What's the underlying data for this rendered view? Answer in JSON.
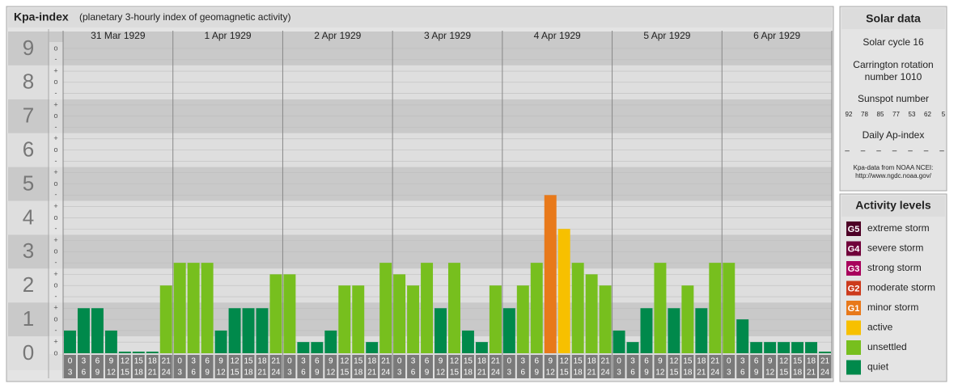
{
  "chart_data": {
    "type": "bar",
    "title": "Kpa-index",
    "subtitle": "(planetary 3-hourly index of geomagnetic activity)",
    "days": [
      "31 Mar 1929",
      "1 Apr 1929",
      "2 Apr 1929",
      "3 Apr 1929",
      "4 Apr 1929",
      "5 Apr 1929",
      "6 Apr 1929"
    ],
    "hours": [
      {
        "from": 0,
        "to": 3
      },
      {
        "from": 3,
        "to": 6
      },
      {
        "from": 6,
        "to": 9
      },
      {
        "from": 9,
        "to": 12
      },
      {
        "from": 12,
        "to": 15
      },
      {
        "from": 15,
        "to": 18
      },
      {
        "from": 18,
        "to": 21
      },
      {
        "from": 21,
        "to": 24
      }
    ],
    "values": [
      0.67,
      1.33,
      1.33,
      0.67,
      0,
      0,
      0,
      2,
      2.67,
      2.67,
      2.67,
      0.67,
      1.33,
      1.33,
      1.33,
      2.33,
      2.33,
      0.33,
      0.33,
      0.67,
      2,
      2,
      0.33,
      2.67,
      2.33,
      2,
      2.67,
      1.33,
      2.67,
      0.67,
      0.33,
      2,
      1.33,
      2,
      2.67,
      4.67,
      3.67,
      2.67,
      2.33,
      2,
      0.67,
      0.33,
      1.33,
      2.67,
      1.33,
      2,
      1.33,
      2.67,
      2.67,
      1,
      0.33,
      0.33,
      0.33,
      0.33,
      0.33,
      0
    ],
    "colors": [
      "#00894b",
      "#00894b",
      "#00894b",
      "#00894b",
      "#00894b",
      "#00894b",
      "#00894b",
      "#77bf1e",
      "#77bf1e",
      "#77bf1e",
      "#77bf1e",
      "#00894b",
      "#00894b",
      "#00894b",
      "#00894b",
      "#77bf1e",
      "#77bf1e",
      "#00894b",
      "#00894b",
      "#00894b",
      "#77bf1e",
      "#77bf1e",
      "#00894b",
      "#77bf1e",
      "#77bf1e",
      "#77bf1e",
      "#77bf1e",
      "#00894b",
      "#77bf1e",
      "#00894b",
      "#00894b",
      "#77bf1e",
      "#00894b",
      "#77bf1e",
      "#77bf1e",
      "#e8791a",
      "#f7c000",
      "#77bf1e",
      "#77bf1e",
      "#77bf1e",
      "#00894b",
      "#00894b",
      "#00894b",
      "#77bf1e",
      "#00894b",
      "#77bf1e",
      "#00894b",
      "#77bf1e",
      "#77bf1e",
      "#00894b",
      "#00894b",
      "#00894b",
      "#00894b",
      "#00894b",
      "#00894b",
      "#00894b"
    ],
    "ylim": [
      0,
      9.5
    ],
    "yticks": [
      0,
      1,
      2,
      3,
      4,
      5,
      6,
      7,
      8,
      9
    ],
    "minor_ticks": [
      {
        "value": 0,
        "label": "o"
      },
      {
        "value": 0.33,
        "label": "+"
      },
      {
        "value": 0.67,
        "label": "-"
      },
      {
        "value": 1,
        "label": "o"
      },
      {
        "value": 1.33,
        "label": "+"
      },
      {
        "value": 1.67,
        "label": "-"
      },
      {
        "value": 2,
        "label": "o"
      },
      {
        "value": 2.33,
        "label": "+"
      },
      {
        "value": 2.67,
        "label": "-"
      },
      {
        "value": 3,
        "label": "o"
      },
      {
        "value": 3.33,
        "label": "+"
      },
      {
        "value": 3.67,
        "label": "-"
      },
      {
        "value": 4,
        "label": "o"
      },
      {
        "value": 4.33,
        "label": "+"
      },
      {
        "value": 4.67,
        "label": "-"
      },
      {
        "value": 5,
        "label": "o"
      },
      {
        "value": 5.33,
        "label": "+"
      },
      {
        "value": 5.67,
        "label": "-"
      },
      {
        "value": 6,
        "label": "o"
      },
      {
        "value": 6.33,
        "label": "+"
      },
      {
        "value": 6.67,
        "label": "-"
      },
      {
        "value": 7,
        "label": "o"
      },
      {
        "value": 7.33,
        "label": "+"
      },
      {
        "value": 7.67,
        "label": "-"
      },
      {
        "value": 8,
        "label": "o"
      },
      {
        "value": 8.33,
        "label": "+"
      },
      {
        "value": 8.67,
        "label": "-"
      },
      {
        "value": 9,
        "label": "o"
      }
    ],
    "grid": true
  },
  "solar_data": {
    "title": "Solar data",
    "solar_cycle": "Solar cycle 16",
    "carrington": [
      "Carrington rotation",
      "number 1010"
    ],
    "sunspot_title": "Sunspot number",
    "sunspot_numbers": [
      92,
      78,
      85,
      77,
      53,
      62,
      5
    ],
    "ap_title": "Daily Ap-index",
    "ap_values": [
      "–",
      "–",
      "–",
      "–",
      "–",
      "–",
      "–"
    ],
    "source": [
      "Kpa-data from NOAA NCEI:",
      "http://www.ngdc.noaa.gov/"
    ]
  },
  "activity_levels": {
    "title": "Activity levels",
    "items": [
      {
        "badge": "G5",
        "label": "extreme storm",
        "color": "#4d0026"
      },
      {
        "badge": "G4",
        "label": "severe storm",
        "color": "#70003a"
      },
      {
        "badge": "G3",
        "label": "strong storm",
        "color": "#a8005c"
      },
      {
        "badge": "G2",
        "label": "moderate storm",
        "color": "#cc3a1c"
      },
      {
        "badge": "G1",
        "label": "minor storm",
        "color": "#e8791a"
      },
      {
        "label": "active",
        "color": "#f7c000"
      },
      {
        "label": "unsettled",
        "color": "#77bf1e"
      },
      {
        "label": "quiet",
        "color": "#00894b"
      }
    ]
  }
}
